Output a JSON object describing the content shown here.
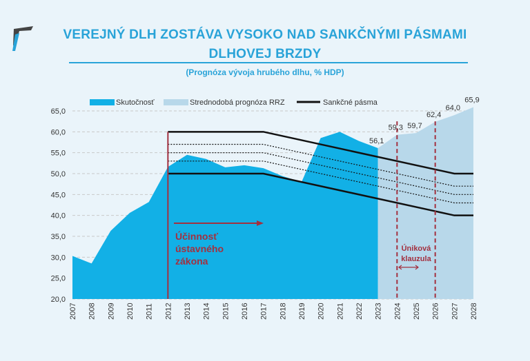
{
  "header": {
    "title_line1": "VEREJNÝ DLH ZOSTÁVA VYSOKO NAD SANKČNÝMI PÁSMAMI",
    "title_line2": "DLHOVEJ BRZDY",
    "subtitle": "(Prognóza vývoja hrubého dlhu, % HDP)"
  },
  "chart_data": {
    "type": "area",
    "title": "VEREJNÝ DLH ZOSTÁVA VYSOKO NAD SANKČNÝMI PÁSMAMI DLHOVEJ BRZDY",
    "subtitle": "(Prognóza vývoja hrubého dlhu, % HDP)",
    "ylim": [
      20,
      65
    ],
    "yticks": [
      "20,0",
      "25,0",
      "30,0",
      "35,0",
      "40,0",
      "45,0",
      "50,0",
      "55,0",
      "60,0",
      "65,0"
    ],
    "x": [
      "2007",
      "2008",
      "2009",
      "2010",
      "2011",
      "2012",
      "2013",
      "2014",
      "2015",
      "2016",
      "2017",
      "2018",
      "2019",
      "2020",
      "2021",
      "2022",
      "2023",
      "2024",
      "2025",
      "2026",
      "2027",
      "2028"
    ],
    "legend": [
      "Skutočnosť",
      "Strednodobá prognóza RRZ",
      "Sankčné pásma"
    ],
    "legend_position": "top",
    "series": [
      {
        "name": "Skutočnosť",
        "color": "#12b0e6",
        "values": [
          30.3,
          28.5,
          36.3,
          40.6,
          43.2,
          51.6,
          54.5,
          53.5,
          51.5,
          52.0,
          51.3,
          49.4,
          48.0,
          58.5,
          60.0,
          57.8,
          56.1,
          null,
          null,
          null,
          null,
          null
        ]
      },
      {
        "name": "Strednodobá prognóza RRZ",
        "color": "#b8d8ea",
        "values": [
          null,
          null,
          null,
          null,
          null,
          null,
          null,
          null,
          null,
          null,
          null,
          null,
          null,
          null,
          null,
          null,
          56.1,
          59.3,
          59.7,
          62.4,
          64.0,
          65.9
        ]
      },
      {
        "name": "Sankčné pásma",
        "color": "#111111",
        "lines": [
          {
            "style": "solid",
            "points": [
              [
                "2012",
                60
              ],
              [
                "2017",
                60
              ],
              [
                "2027",
                50
              ],
              [
                "2028",
                50
              ]
            ]
          },
          {
            "style": "dotted",
            "points": [
              [
                "2012",
                57
              ],
              [
                "2017",
                57
              ],
              [
                "2027",
                47
              ],
              [
                "2028",
                47
              ]
            ]
          },
          {
            "style": "dotted",
            "points": [
              [
                "2012",
                55
              ],
              [
                "2017",
                55
              ],
              [
                "2027",
                45
              ],
              [
                "2028",
                45
              ]
            ]
          },
          {
            "style": "dotted",
            "points": [
              [
                "2012",
                53
              ],
              [
                "2017",
                53
              ],
              [
                "2027",
                43
              ],
              [
                "2028",
                43
              ]
            ]
          },
          {
            "style": "solid",
            "points": [
              [
                "2012",
                50
              ],
              [
                "2017",
                50
              ],
              [
                "2027",
                40
              ],
              [
                "2028",
                40
              ]
            ]
          }
        ]
      }
    ],
    "data_labels": [
      {
        "x": "2023",
        "text": "56,1"
      },
      {
        "x": "2024",
        "text": "59,3"
      },
      {
        "x": "2025",
        "text": "59,7"
      },
      {
        "x": "2026",
        "text": "62,4"
      },
      {
        "x": "2027",
        "text": "64,0"
      },
      {
        "x": "2028",
        "text": "65,9"
      }
    ],
    "annotations": [
      {
        "text_lines": [
          "Účinnosť",
          "ústavného",
          "zákona"
        ],
        "x": "2012",
        "color": "#a3303f"
      },
      {
        "text_lines": [
          "Úniková",
          "klauzula"
        ],
        "x_range": [
          "2024",
          "2026"
        ],
        "color": "#a3303f"
      }
    ]
  }
}
